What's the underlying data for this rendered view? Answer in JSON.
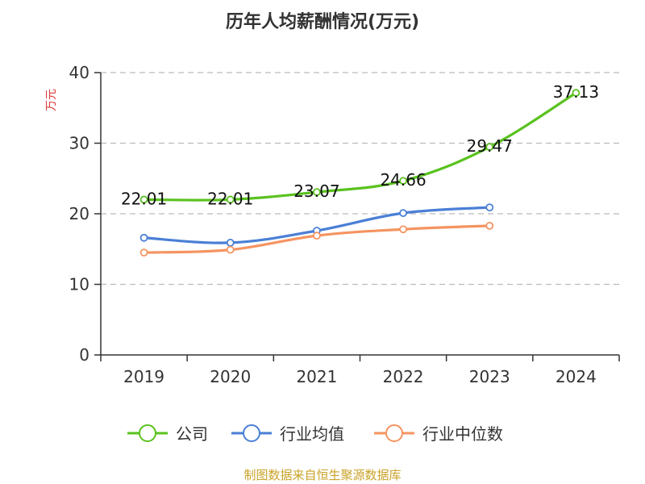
{
  "chart_data": {
    "type": "line",
    "title": "历年人均薪酬情况(万元)",
    "ylabel": "万元",
    "xlabel": "",
    "ylim": [
      0,
      40
    ],
    "yticks": [
      0,
      10,
      20,
      30,
      40
    ],
    "categories": [
      "2019",
      "2020",
      "2021",
      "2022",
      "2023",
      "2024"
    ],
    "series": [
      {
        "name": "公司",
        "color": "#5ac21f",
        "values": [
          22.01,
          22.01,
          23.07,
          24.66,
          29.47,
          37.13
        ],
        "labels": [
          "22.01",
          "22.01",
          "23.07",
          "24.66",
          "29.47",
          "37.13"
        ]
      },
      {
        "name": "行业均值",
        "color": "#4a7fd6",
        "values": [
          16.6,
          15.9,
          17.6,
          20.1,
          20.9,
          null
        ]
      },
      {
        "name": "行业中位数",
        "color": "#f59461",
        "values": [
          14.5,
          14.9,
          16.9,
          17.8,
          18.3,
          null
        ]
      }
    ],
    "grid": true,
    "legend": "bottom"
  },
  "colors": {
    "ylabel": "#e03a3a",
    "source": "#c9a227",
    "axis": "#333333",
    "grid": "#bbbbbb"
  },
  "source_text": "制图数据来自恒生聚源数据库"
}
